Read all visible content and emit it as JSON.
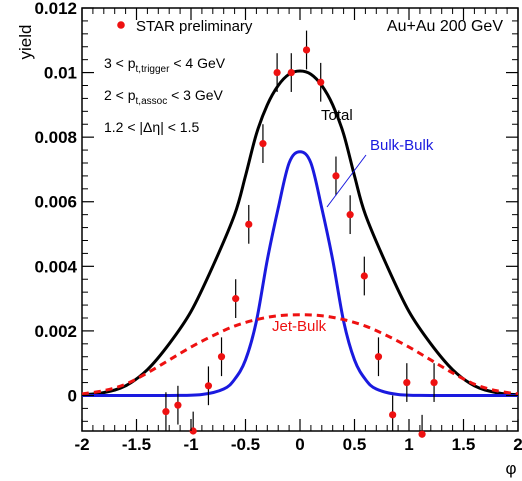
{
  "chart_data": {
    "type": "scatter",
    "title": "",
    "xlabel": "φ",
    "ylabel": "yield",
    "xlim": [
      -2,
      2
    ],
    "ylim": [
      -0.0011,
      0.012
    ],
    "x_ticks": [
      "-2",
      "-1.5",
      "-1",
      "-0.5",
      "0",
      "0.5",
      "1",
      "1.5",
      "2"
    ],
    "y_ticks": [
      "0",
      "0.002",
      "0.004",
      "0.006",
      "0.008",
      "0.01",
      "0.012"
    ],
    "grid": false,
    "legend": {
      "position": "top-left",
      "entries": [
        {
          "label": "STAR preliminary",
          "marker": "red-dot"
        }
      ]
    },
    "annotations": {
      "system": "Au+Au 200 GeV",
      "cut_trigger": {
        "pre": "3 < p",
        "sub": "t,trigger",
        "post": " < 4 GeV"
      },
      "cut_assoc": {
        "pre": "2 < p",
        "sub": "t,assoc",
        "post": " < 3 GeV"
      },
      "cut_eta": "1.2 < |Δη| < 1.5"
    },
    "series": [
      {
        "name": "STAR preliminary",
        "kind": "points",
        "color": "#ee1111",
        "x": [
          -1.23,
          -1.12,
          -0.98,
          -0.84,
          -0.72,
          -0.59,
          -0.47,
          -0.34,
          -0.21,
          -0.08,
          0.06,
          0.19,
          0.33,
          0.46,
          0.59,
          0.72,
          0.85,
          0.98,
          1.12,
          1.23
        ],
        "y": [
          -0.0005,
          -0.0003,
          -0.0011,
          0.0003,
          0.0012,
          0.003,
          0.0053,
          0.0078,
          0.01,
          0.01,
          0.0107,
          0.0097,
          0.0068,
          0.0056,
          0.0037,
          0.0012,
          -0.0006,
          0.0004,
          -0.0012,
          0.0004
        ],
        "err": [
          0.0006,
          0.0006,
          0.0006,
          0.0006,
          0.0006,
          0.0006,
          0.0006,
          0.0006,
          0.0006,
          0.0006,
          0.0006,
          0.0006,
          0.0006,
          0.0006,
          0.0006,
          0.0006,
          0.0006,
          0.0006,
          0.0006,
          0.0006
        ]
      },
      {
        "name": "Total",
        "kind": "line",
        "color": "#000000",
        "x": [
          -2.0,
          -1.8,
          -1.6,
          -1.4,
          -1.2,
          -1.0,
          -0.8,
          -0.6,
          -0.5,
          -0.4,
          -0.3,
          -0.2,
          -0.1,
          0.0,
          0.1,
          0.2,
          0.3,
          0.4,
          0.5,
          0.6,
          0.8,
          1.0,
          1.2,
          1.4,
          1.6,
          1.8,
          2.0
        ],
        "y": [
          2e-05,
          9e-05,
          0.0003,
          0.0008,
          0.0016,
          0.0026,
          0.004,
          0.0056,
          0.0068,
          0.0081,
          0.009,
          0.0096,
          0.00995,
          0.01005,
          0.00995,
          0.0096,
          0.009,
          0.0081,
          0.0068,
          0.0056,
          0.004,
          0.0026,
          0.0016,
          0.0008,
          0.0003,
          9e-05,
          2e-05
        ]
      },
      {
        "name": "Bulk-Bulk",
        "kind": "line",
        "color": "#1a1adf",
        "x": [
          -2.0,
          -1.2,
          -0.9,
          -0.7,
          -0.6,
          -0.5,
          -0.4,
          -0.3,
          -0.2,
          -0.1,
          0.0,
          0.1,
          0.2,
          0.3,
          0.4,
          0.5,
          0.6,
          0.7,
          0.9,
          1.2,
          2.0
        ],
        "y": [
          0.0,
          0.0,
          3e-05,
          0.0002,
          0.0005,
          0.0011,
          0.0023,
          0.0042,
          0.0058,
          0.0072,
          0.00755,
          0.0072,
          0.0058,
          0.0042,
          0.0023,
          0.0011,
          0.0005,
          0.0002,
          3e-05,
          0.0,
          0.0
        ]
      },
      {
        "name": "Jet-Bulk",
        "kind": "dashed-line",
        "color": "#ee1111",
        "x": [
          -2.0,
          -1.8,
          -1.6,
          -1.4,
          -1.2,
          -1.0,
          -0.8,
          -0.6,
          -0.4,
          -0.2,
          0.0,
          0.2,
          0.4,
          0.6,
          0.8,
          1.0,
          1.2,
          1.4,
          1.6,
          1.8,
          2.0
        ],
        "y": [
          5e-05,
          0.00015,
          0.00035,
          0.0007,
          0.0011,
          0.0015,
          0.00185,
          0.00215,
          0.00235,
          0.00247,
          0.0025,
          0.00247,
          0.00235,
          0.00215,
          0.00185,
          0.0015,
          0.0011,
          0.0007,
          0.00035,
          0.00015,
          5e-05
        ]
      }
    ],
    "curve_labels": {
      "total": "Total",
      "bulk": "Bulk-Bulk",
      "jet": "Jet-Bulk"
    },
    "colors": {
      "data": "#ee1111",
      "total": "#000000",
      "bulk": "#1a1adf",
      "jet": "#ee1111"
    }
  }
}
